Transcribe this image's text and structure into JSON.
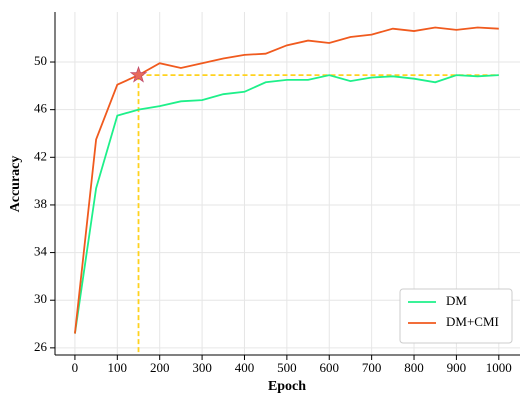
{
  "chart_data": {
    "type": "line",
    "x_label": "Epoch",
    "y_label": "Accuracy",
    "x": [
      0,
      50,
      100,
      150,
      200,
      250,
      300,
      350,
      400,
      450,
      500,
      550,
      600,
      650,
      700,
      750,
      800,
      850,
      900,
      950,
      1000
    ],
    "series": [
      {
        "name": "DM",
        "color": "#1ef08a",
        "values": [
          27.2,
          39.4,
          45.5,
          46.0,
          46.3,
          46.7,
          46.8,
          47.3,
          47.5,
          48.3,
          48.5,
          48.5,
          48.9,
          48.4,
          48.7,
          48.8,
          48.6,
          48.3,
          48.9,
          48.8,
          48.9
        ]
      },
      {
        "name": "DM+CMI",
        "color": "#f05a1e",
        "values": [
          27.2,
          43.5,
          48.1,
          48.9,
          49.9,
          49.5,
          49.9,
          50.3,
          50.6,
          50.7,
          51.4,
          51.8,
          51.6,
          52.1,
          52.3,
          52.8,
          52.6,
          52.9,
          52.7,
          52.9,
          52.8
        ]
      }
    ],
    "highlight": {
      "x": 150,
      "y": 48.9,
      "color": "#ffd21e"
    },
    "xlim": [
      -47,
      1050
    ],
    "ylim": [
      25.4,
      54.2
    ],
    "xticks": [
      0,
      100,
      200,
      300,
      400,
      500,
      600,
      700,
      800,
      900,
      1000
    ],
    "yticks": [
      26,
      30,
      34,
      38,
      42,
      46,
      50
    ],
    "grid": true,
    "legend": "lower right"
  }
}
